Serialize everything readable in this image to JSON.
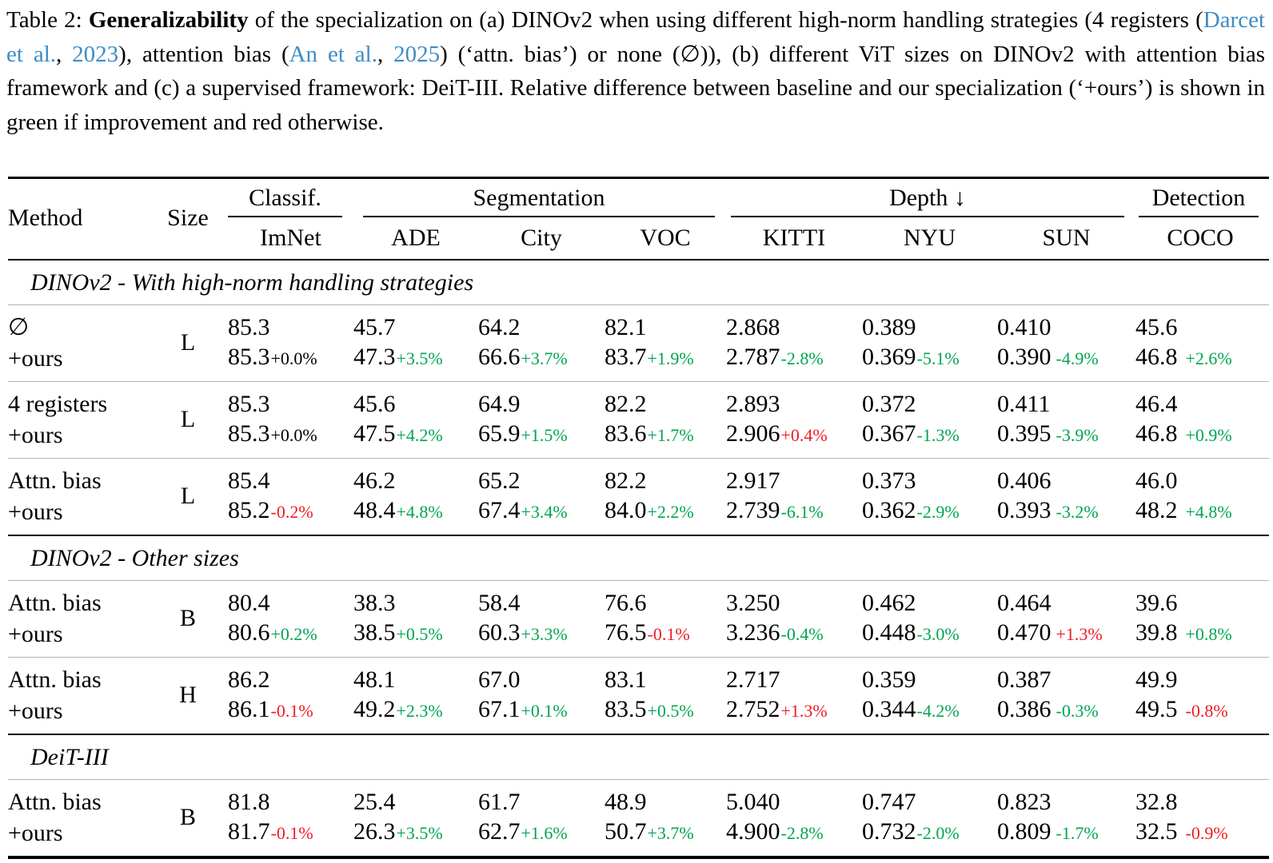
{
  "colors": {
    "green": "#00a550",
    "red": "#ed1c24",
    "link_blue": "#3e8cc7"
  },
  "caption": {
    "segments": [
      {
        "text": "Table 2: ",
        "style": "normal"
      },
      {
        "text": "Generalizability",
        "style": "bold"
      },
      {
        "text": " of the specialization on (a) DINOv2 when using different high-norm handling strategies (4 registers (",
        "style": "normal"
      },
      {
        "text": "Darcet et al.",
        "style": "link"
      },
      {
        "text": ", ",
        "style": "normal"
      },
      {
        "text": "2023",
        "style": "link"
      },
      {
        "text": "), attention bias (",
        "style": "normal"
      },
      {
        "text": "An et al.",
        "style": "link"
      },
      {
        "text": ", ",
        "style": "normal"
      },
      {
        "text": "2025",
        "style": "link"
      },
      {
        "text": ") (‘attn. bias’) or none (∅)), (b) different ViT sizes on DINOv2 with attention bias framework and (c) a supervised framework: DeiT-III. Relative difference between baseline and our specialization (‘+ours’) is shown in green if improvement and red otherwise.",
        "style": "normal"
      }
    ]
  },
  "table": {
    "header": {
      "method": "Method",
      "size": "Size",
      "groups": [
        {
          "label": "Classif.",
          "cols": [
            "ImNet"
          ]
        },
        {
          "label": "Segmentation",
          "cols": [
            "ADE",
            "City",
            "VOC"
          ]
        },
        {
          "label": "Depth ↓",
          "cols": [
            "KITTI",
            "NYU",
            "SUN"
          ]
        },
        {
          "label": "Detection",
          "cols": [
            "COCO"
          ]
        }
      ]
    },
    "ours_label": "+ours",
    "sections": [
      {
        "title": "DINOv2 - With high-norm handling strategies",
        "blocks": [
          {
            "method": "∅",
            "size": "L",
            "baseline": [
              "85.3",
              "45.7",
              "64.2",
              "82.1",
              "2.868",
              "0.389",
              "0.410",
              "45.6"
            ],
            "ours": [
              "85.3",
              "47.3",
              "66.6",
              "83.7",
              "2.787",
              "0.369",
              "0.390",
              "46.8"
            ],
            "delta": [
              "+0.0%",
              "+3.5%",
              "+3.7%",
              "+1.9%",
              "-2.8%",
              "-5.1%",
              "-4.9%",
              "+2.6%"
            ],
            "delta_color": [
              "black",
              "green",
              "green",
              "green",
              "green",
              "green",
              "green",
              "green"
            ]
          },
          {
            "method": "4 registers",
            "size": "L",
            "baseline": [
              "85.3",
              "45.6",
              "64.9",
              "82.2",
              "2.893",
              "0.372",
              "0.411",
              "46.4"
            ],
            "ours": [
              "85.3",
              "47.5",
              "65.9",
              "83.6",
              "2.906",
              "0.367",
              "0.395",
              "46.8"
            ],
            "delta": [
              "+0.0%",
              "+4.2%",
              "+1.5%",
              "+1.7%",
              "+0.4%",
              "-1.3%",
              "-3.9%",
              "+0.9%"
            ],
            "delta_color": [
              "black",
              "green",
              "green",
              "green",
              "red",
              "green",
              "green",
              "green"
            ]
          },
          {
            "method": "Attn. bias",
            "size": "L",
            "baseline": [
              "85.4",
              "46.2",
              "65.2",
              "82.2",
              "2.917",
              "0.373",
              "0.406",
              "46.0"
            ],
            "ours": [
              "85.2",
              "48.4",
              "67.4",
              "84.0",
              "2.739",
              "0.362",
              "0.393",
              "48.2"
            ],
            "delta": [
              "-0.2%",
              "+4.8%",
              "+3.4%",
              "+2.2%",
              "-6.1%",
              "-2.9%",
              "-3.2%",
              "+4.8%"
            ],
            "delta_color": [
              "red",
              "green",
              "green",
              "green",
              "green",
              "green",
              "green",
              "green"
            ]
          }
        ]
      },
      {
        "title": "DINOv2 - Other sizes",
        "blocks": [
          {
            "method": "Attn. bias",
            "size": "B",
            "baseline": [
              "80.4",
              "38.3",
              "58.4",
              "76.6",
              "3.250",
              "0.462",
              "0.464",
              "39.6"
            ],
            "ours": [
              "80.6",
              "38.5",
              "60.3",
              "76.5",
              "3.236",
              "0.448",
              "0.470",
              "39.8"
            ],
            "delta": [
              "+0.2%",
              "+0.5%",
              "+3.3%",
              "-0.1%",
              "-0.4%",
              "-3.0%",
              "+1.3%",
              "+0.8%"
            ],
            "delta_color": [
              "green",
              "green",
              "green",
              "red",
              "green",
              "green",
              "red",
              "green"
            ]
          },
          {
            "method": "Attn. bias",
            "size": "H",
            "baseline": [
              "86.2",
              "48.1",
              "67.0",
              "83.1",
              "2.717",
              "0.359",
              "0.387",
              "49.9"
            ],
            "ours": [
              "86.1",
              "49.2",
              "67.1",
              "83.5",
              "2.752",
              "0.344",
              "0.386",
              "49.5"
            ],
            "delta": [
              "-0.1%",
              "+2.3%",
              "+0.1%",
              "+0.5%",
              "+1.3%",
              "-4.2%",
              "-0.3%",
              "-0.8%"
            ],
            "delta_color": [
              "red",
              "green",
              "green",
              "green",
              "red",
              "green",
              "green",
              "red"
            ]
          }
        ]
      },
      {
        "title": "DeiT-III",
        "blocks": [
          {
            "method": "Attn. bias",
            "size": "B",
            "baseline": [
              "81.8",
              "25.4",
              "61.7",
              "48.9",
              "5.040",
              "0.747",
              "0.823",
              "32.8"
            ],
            "ours": [
              "81.7",
              "26.3",
              "62.7",
              "50.7",
              "4.900",
              "0.732",
              "0.809",
              "32.5"
            ],
            "delta": [
              "-0.1%",
              "+3.5%",
              "+1.6%",
              "+3.7%",
              "-2.8%",
              "-2.0%",
              "-1.7%",
              "-0.9%"
            ],
            "delta_color": [
              "red",
              "green",
              "green",
              "green",
              "green",
              "green",
              "green",
              "red"
            ]
          }
        ]
      }
    ]
  }
}
